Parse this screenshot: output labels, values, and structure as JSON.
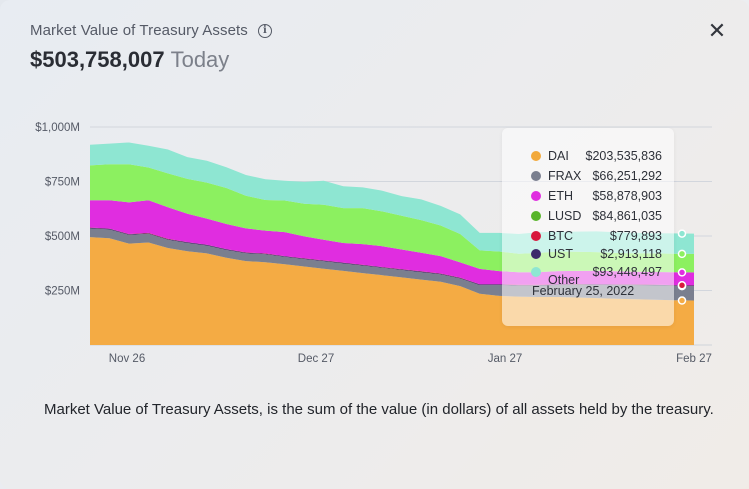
{
  "header": {
    "title": "Market Value of Treasury Assets",
    "value": "$503,758,007",
    "today_label": "Today"
  },
  "close_label": "✕",
  "info_label": "i",
  "tooltip": {
    "date": "February 25, 2022",
    "items": [
      {
        "name": "DAI",
        "value": "$203,535,836",
        "color": "#f2a93b"
      },
      {
        "name": "FRAX",
        "value": "$66,251,292",
        "color": "#7a7f8f"
      },
      {
        "name": "ETH",
        "value": "$58,878,903",
        "color": "#e02de0"
      },
      {
        "name": "LUSD",
        "value": "$84,861,035",
        "color": "#58b52a"
      },
      {
        "name": "BTC",
        "value": "$779,893",
        "color": "#d8173c"
      },
      {
        "name": "UST",
        "value": "$2,913,118",
        "color": "#3d2a6b"
      },
      {
        "name": "Other",
        "value": "$93,448,497",
        "color": "#8ee6d2"
      }
    ]
  },
  "description": "Market Value of Treasury Assets, is the sum of the value (in dollars) of all assets held by the treasury.",
  "chart_data": {
    "type": "area",
    "stacked": true,
    "ylim": [
      0,
      1000
    ],
    "yunit": "M",
    "yticks": [
      {
        "value": 250,
        "label": "$250M"
      },
      {
        "value": 500,
        "label": "$500M"
      },
      {
        "value": 750,
        "label": "$750M"
      },
      {
        "value": 1000,
        "label": "$1,000M"
      }
    ],
    "x": [
      "Nov 23",
      "Nov 26",
      "Nov 29",
      "Dec 3",
      "Dec 6",
      "Dec 9",
      "Dec 12",
      "Dec 15",
      "Dec 18",
      "Dec 21",
      "Dec 24",
      "Dec 27",
      "Dec 30",
      "Jan 2",
      "Jan 5",
      "Jan 8",
      "Jan 11",
      "Jan 14",
      "Jan 17",
      "Jan 20",
      "Jan 23",
      "Jan 27",
      "Jan 30",
      "Feb 2",
      "Feb 5",
      "Feb 8",
      "Feb 11",
      "Feb 14",
      "Feb 17",
      "Feb 20",
      "Feb 23",
      "Feb 25"
    ],
    "xticks": [
      {
        "value": "Nov 26",
        "label": "Nov 26"
      },
      {
        "value": "Dec 27",
        "label": "Dec 27"
      },
      {
        "value": "Jan 27",
        "label": "Jan 27"
      },
      {
        "value": "Feb 27",
        "label": "Feb 27"
      }
    ],
    "series": [
      {
        "name": "DAI",
        "color": "#f4ab44",
        "values": [
          495,
          490,
          465,
          470,
          445,
          430,
          420,
          400,
          385,
          380,
          370,
          360,
          350,
          340,
          330,
          320,
          310,
          300,
          290,
          270,
          235,
          225,
          222,
          220,
          220,
          218,
          215,
          212,
          210,
          208,
          205,
          204
        ]
      },
      {
        "name": "FRAX",
        "color": "#7a7f8f",
        "values": [
          40,
          40,
          40,
          40,
          38,
          38,
          36,
          36,
          36,
          36,
          34,
          34,
          34,
          34,
          34,
          34,
          34,
          34,
          34,
          35,
          40,
          50,
          50,
          52,
          55,
          58,
          60,
          62,
          64,
          65,
          66,
          66
        ]
      },
      {
        "name": "UST",
        "color": "#3d2a6b",
        "values": [
          3,
          3,
          3,
          3,
          3,
          3,
          3,
          3,
          3,
          3,
          3,
          3,
          3,
          3,
          3,
          3,
          3,
          3,
          3,
          3,
          3,
          3,
          3,
          3,
          3,
          3,
          3,
          3,
          3,
          3,
          3,
          3
        ]
      },
      {
        "name": "BTC",
        "color": "#d8173c",
        "values": [
          1,
          1,
          1,
          1,
          1,
          1,
          1,
          1,
          1,
          1,
          1,
          1,
          1,
          1,
          1,
          1,
          1,
          1,
          1,
          1,
          1,
          1,
          1,
          1,
          1,
          1,
          1,
          1,
          1,
          1,
          1,
          1
        ]
      },
      {
        "name": "ETH",
        "color": "#e02de0",
        "values": [
          125,
          130,
          145,
          150,
          145,
          130,
          120,
          115,
          110,
          105,
          110,
          100,
          95,
          90,
          95,
          95,
          90,
          85,
          80,
          70,
          70,
          60,
          58,
          58,
          60,
          60,
          62,
          60,
          58,
          58,
          59,
          59
        ]
      },
      {
        "name": "LUSD",
        "color": "#8cf060",
        "values": [
          160,
          165,
          175,
          150,
          155,
          160,
          165,
          165,
          150,
          140,
          145,
          150,
          160,
          160,
          165,
          160,
          155,
          150,
          140,
          130,
          85,
          90,
          85,
          88,
          90,
          88,
          85,
          84,
          85,
          85,
          85,
          85
        ]
      },
      {
        "name": "Other",
        "color": "#8ee6d2",
        "values": [
          95,
          95,
          100,
          100,
          110,
          100,
          100,
          95,
          95,
          95,
          90,
          100,
          110,
          100,
          95,
          95,
          90,
          95,
          90,
          90,
          80,
          85,
          90,
          95,
          90,
          92,
          95,
          95,
          93,
          93,
          93,
          93
        ]
      }
    ]
  }
}
